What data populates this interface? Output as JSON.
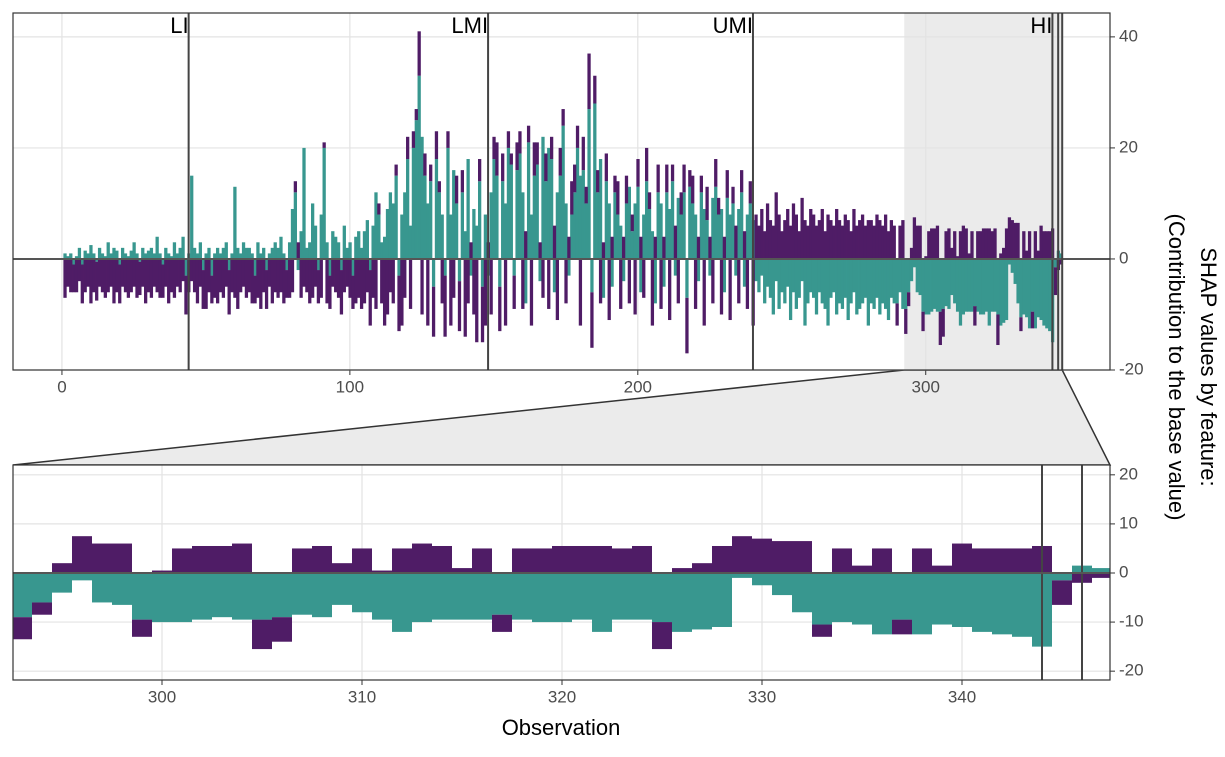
{
  "chart_data": [
    {
      "type": "bar",
      "ylabel": [
        "SHAP values by feature:",
        "(Contribution to the base value)"
      ],
      "regions": [
        "LI",
        "LMI",
        "UMI",
        "HI"
      ],
      "vlines": [
        44,
        148,
        240,
        344,
        346
      ],
      "xlim": [
        -17,
        364
      ],
      "xticks": [
        0,
        100,
        200,
        300
      ],
      "ylim": [
        -20,
        44.3
      ],
      "yticks": [
        -20,
        0,
        20,
        40
      ],
      "grid": true,
      "x": [
        1,
        2,
        3,
        4,
        5,
        6,
        7,
        8,
        9,
        10,
        11,
        12,
        13,
        14,
        15,
        16,
        17,
        18,
        19,
        20,
        21,
        22,
        23,
        24,
        25,
        26,
        27,
        28,
        29,
        30,
        31,
        32,
        33,
        34,
        35,
        36,
        37,
        38,
        39,
        40,
        41,
        42,
        43,
        44,
        45,
        46,
        47,
        48,
        49,
        50,
        51,
        52,
        53,
        54,
        55,
        56,
        57,
        58,
        59,
        60,
        61,
        62,
        63,
        64,
        65,
        66,
        67,
        68,
        69,
        70,
        71,
        72,
        73,
        74,
        75,
        76,
        77,
        78,
        79,
        80,
        81,
        82,
        83,
        84,
        85,
        86,
        87,
        88,
        89,
        90,
        91,
        92,
        93,
        94,
        95,
        96,
        97,
        98,
        99,
        100,
        101,
        102,
        103,
        104,
        105,
        106,
        107,
        108,
        109,
        110,
        111,
        112,
        113,
        114,
        115,
        116,
        117,
        118,
        119,
        120,
        121,
        122,
        123,
        124,
        125,
        126,
        127,
        128,
        129,
        130,
        131,
        132,
        133,
        134,
        135,
        136,
        137,
        138,
        139,
        140,
        141,
        142,
        143,
        144,
        145,
        146,
        147,
        148,
        149,
        150,
        151,
        152,
        153,
        154,
        155,
        156,
        157,
        158,
        159,
        160,
        161,
        162,
        163,
        164,
        165,
        166,
        167,
        168,
        169,
        170,
        171,
        172,
        173,
        174,
        175,
        176,
        177,
        178,
        179,
        180,
        181,
        182,
        183,
        184,
        185,
        186,
        187,
        188,
        189,
        190,
        191,
        192,
        193,
        194,
        195,
        196,
        197,
        198,
        199,
        200,
        201,
        202,
        203,
        204,
        205,
        206,
        207,
        208,
        209,
        210,
        211,
        212,
        213,
        214,
        215,
        216,
        217,
        218,
        219,
        220,
        221,
        222,
        223,
        224,
        225,
        226,
        227,
        228,
        229,
        230,
        231,
        232,
        233,
        234,
        235,
        236,
        237,
        238,
        239,
        240,
        241,
        242,
        243,
        244,
        245,
        246,
        247,
        248,
        249,
        250,
        251,
        252,
        253,
        254,
        255,
        256,
        257,
        258,
        259,
        260,
        261,
        262,
        263,
        264,
        265,
        266,
        267,
        268,
        269,
        270,
        271,
        272,
        273,
        274,
        275,
        276,
        277,
        278,
        279,
        280,
        281,
        282,
        283,
        284,
        285,
        286,
        287,
        288,
        289,
        290,
        291,
        292,
        293,
        294,
        295,
        296,
        297,
        298,
        299,
        300,
        301,
        302,
        303,
        304,
        305,
        306,
        307,
        308,
        309,
        310,
        311,
        312,
        313,
        314,
        315,
        316,
        317,
        318,
        319,
        320,
        321,
        322,
        323,
        324,
        325,
        326,
        327,
        328,
        329,
        330,
        331,
        332,
        333,
        334,
        335,
        336,
        337,
        338,
        339,
        340,
        341,
        342,
        343,
        344,
        345,
        346,
        347
      ],
      "series": [
        {
          "color": "#38978f",
          "values": [
            1,
            0.5,
            1,
            -1,
            0.5,
            2,
            -1,
            1.5,
            1,
            2.5,
            1,
            -0.5,
            2,
            1,
            0.5,
            3,
            1,
            2,
            1.5,
            -1,
            2,
            1,
            0.5,
            1.5,
            3,
            1,
            -0.5,
            2,
            1,
            1.5,
            2,
            1,
            4,
            1,
            -1,
            2,
            1,
            0.5,
            3,
            1,
            2,
            4,
            -3,
            1,
            15,
            2,
            1,
            3,
            -2,
            1,
            2,
            -3,
            1,
            2,
            1,
            2,
            3,
            -2,
            1,
            13,
            2,
            1,
            3,
            2,
            2,
            1,
            -3,
            3,
            1,
            2,
            -2,
            1,
            2,
            3,
            2,
            4,
            1,
            -2,
            3,
            9,
            12,
            -2,
            5,
            20,
            2,
            3,
            10,
            6,
            -2,
            8,
            20,
            3,
            -3,
            5,
            4,
            3,
            -2,
            6,
            2,
            3,
            -3,
            4,
            5,
            2,
            5,
            7,
            -2,
            6,
            12,
            8,
            3,
            4,
            9,
            12,
            10,
            15,
            -3,
            8,
            12,
            18,
            6,
            20,
            25,
            33,
            22,
            15,
            10,
            14,
            -5,
            18,
            12,
            8,
            -3,
            20,
            8,
            16,
            10,
            -4,
            12,
            5,
            18,
            -3,
            9,
            6,
            14,
            -5,
            8,
            -3,
            12,
            18,
            15,
            -5,
            14,
            10,
            20,
            17,
            -3,
            16,
            19,
            12,
            -8,
            21,
            8,
            15,
            17,
            -4,
            22,
            14,
            20,
            18,
            -6,
            12,
            15,
            24,
            10,
            -3,
            8,
            12,
            20,
            15,
            16,
            10,
            27,
            -6,
            28,
            12,
            18,
            -7,
            14,
            10,
            -5,
            12,
            8,
            6,
            -4,
            10,
            13,
            5,
            10,
            13,
            -6,
            8,
            14,
            9,
            5,
            -8,
            12,
            10,
            -5,
            12,
            9,
            14,
            -3,
            11,
            8,
            12,
            -7,
            13,
            10,
            8,
            -4,
            12,
            9,
            7,
            -3,
            11,
            13,
            8,
            9,
            -6,
            11,
            8,
            10,
            -3,
            9,
            12,
            -5,
            8,
            10,
            7,
            -4,
            -6,
            -3,
            -8,
            -5,
            -7,
            -10,
            -4,
            -9,
            -6,
            -8,
            -5,
            -11,
            -6,
            -9,
            -7,
            -4,
            -12,
            -8,
            -6,
            -7,
            -10,
            -6,
            -8,
            -9,
            -12,
            -7,
            -6,
            -10,
            -8,
            -9,
            -7,
            -11,
            -8,
            -6,
            -10,
            -9,
            -8,
            -7,
            -12,
            -8,
            -9,
            -7,
            -10,
            -8,
            -9,
            -11,
            -7,
            -8,
            -8,
            -6,
            -9,
            -9,
            -6,
            -4,
            -1.5,
            -6,
            -6.5,
            -9.5,
            -10,
            -10,
            -9.5,
            -9,
            -9.5,
            -9.5,
            -9,
            -8.5,
            -9,
            -6.5,
            -8,
            -9.5,
            -12,
            -10,
            -9.5,
            -9.5,
            -9.5,
            -8.5,
            -9.5,
            -10,
            -10,
            -9.5,
            -12,
            -9.5,
            -9.5,
            -10,
            -12,
            -11.5,
            -11,
            -1,
            -2.5,
            -4.5,
            -8,
            -10.5,
            -10,
            -10.5,
            -12.5,
            -9.5,
            -12.5,
            -10.5,
            -11,
            -12,
            -12.5,
            -13,
            -15,
            -1.5,
            1.5,
            1
          ]
        },
        {
          "color": "#4f1c66",
          "values": [
            -7,
            -5,
            -6,
            -5,
            -6,
            -4,
            -7,
            -6,
            -5,
            -8,
            -6,
            -7,
            -5,
            -6,
            -7,
            -6,
            -5,
            -8,
            -6,
            -7,
            -5,
            -6,
            -7,
            -6,
            -5,
            -7,
            -6,
            -5,
            -8,
            -6,
            -7,
            -5,
            -6,
            -7,
            -6,
            -5,
            -8,
            -6,
            -7,
            -5,
            -6,
            -4,
            -7,
            -6,
            -4,
            -6,
            -8,
            -5,
            -7,
            -9,
            -6,
            -5,
            -7,
            -8,
            -6,
            -7,
            -5,
            -8,
            -6,
            -7,
            -9,
            -6,
            -5,
            -7,
            -6,
            -8,
            -5,
            -7,
            -9,
            -6,
            -7,
            -5,
            -8,
            -6,
            -7,
            -6,
            -8,
            -5,
            -7,
            -6,
            2,
            3,
            -7,
            -5,
            -6,
            -8,
            -7,
            -5,
            -6,
            -7,
            1,
            -8,
            -6,
            -5,
            -6,
            -7,
            -8,
            -6,
            -5,
            -7,
            -6,
            -8,
            -7,
            -9,
            -8,
            -6,
            -10,
            -7,
            -9,
            2,
            -8,
            -12,
            -10,
            -6,
            -8,
            2,
            -10,
            -12,
            -7,
            4,
            -9,
            3,
            2,
            8,
            -10,
            4,
            -12,
            3,
            -9,
            5,
            2,
            -8,
            -11,
            3,
            -12,
            -7,
            5,
            -9,
            4,
            -14,
            -8,
            3,
            -10,
            -15,
            4,
            -10,
            -12,
            3,
            -10,
            4,
            6,
            -8,
            5,
            -12,
            3,
            2,
            -6,
            5,
            4,
            -9,
            5,
            3,
            -12,
            6,
            4,
            3,
            -7,
            5,
            -9,
            4,
            6,
            -11,
            5,
            3,
            -8,
            4,
            6,
            5,
            4,
            -12,
            6,
            3,
            10,
            -10,
            5,
            4,
            -8,
            3,
            5,
            -11,
            4,
            3,
            6,
            -9,
            4,
            5,
            -8,
            3,
            -10,
            5,
            4,
            -7,
            6,
            3,
            -12,
            4,
            5,
            -9,
            4,
            5,
            -11,
            3,
            6,
            -8,
            4,
            5,
            -10,
            3,
            5,
            -9,
            4,
            3,
            -12,
            6,
            4,
            -8,
            5,
            3,
            -10,
            4,
            5,
            -11,
            3,
            6,
            -8,
            4,
            5,
            -9,
            4,
            -12,
            8,
            6,
            9,
            5,
            10,
            7,
            6,
            12,
            8,
            5,
            7,
            9,
            6,
            10,
            8,
            5,
            11,
            7,
            6,
            9,
            8,
            6,
            7,
            9,
            5,
            8,
            7,
            6,
            9,
            7,
            6,
            8,
            7,
            5,
            9,
            6,
            7,
            8,
            6,
            7,
            7,
            6,
            8,
            7,
            6,
            8,
            5,
            7,
            6,
            -4,
            6,
            7,
            -4.5,
            -2.5,
            2,
            7.5,
            6,
            6,
            -3.5,
            0.5,
            5,
            5.5,
            5.5,
            6,
            -6,
            -5,
            5,
            5.5,
            2,
            5,
            0.5,
            5,
            6,
            5.5,
            1,
            5,
            -3.5,
            5,
            5,
            5.5,
            5.5,
            5.5,
            5,
            5.5,
            -5.5,
            1,
            2,
            5.5,
            7.5,
            7,
            6.5,
            6.5,
            -2.5,
            5,
            1.5,
            5,
            -3,
            5,
            1.5,
            6,
            5,
            5,
            5,
            5.5,
            -5,
            -2,
            -1
          ]
        }
      ]
    },
    {
      "type": "bar",
      "xlabel": "Observation",
      "xlim": [
        292.55,
        347.4
      ],
      "xticks": [
        300,
        310,
        320,
        330,
        340
      ],
      "ylim": [
        -21.8,
        22
      ],
      "yticks": [
        -20,
        -10,
        0,
        10,
        20
      ],
      "grid": true
    }
  ]
}
